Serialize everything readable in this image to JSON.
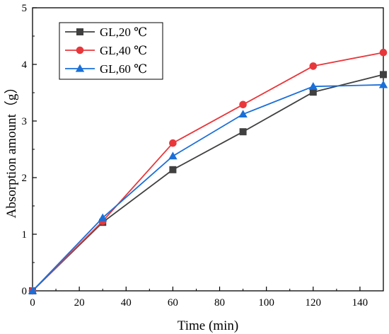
{
  "chart_data": {
    "type": "line",
    "xlabel": "Time (min)",
    "ylabel": "Absorption amount（g）",
    "xlim": [
      0,
      150
    ],
    "ylim": [
      0,
      5
    ],
    "xticks": [
      0,
      20,
      40,
      60,
      80,
      100,
      120,
      140
    ],
    "yticks": [
      0,
      1,
      2,
      3,
      4,
      5
    ],
    "grid": false,
    "legend_position": "top-left",
    "x": [
      0,
      30,
      60,
      90,
      120,
      150
    ],
    "series": [
      {
        "name": "GL,20 ℃",
        "values": [
          0,
          1.21,
          2.14,
          2.81,
          3.51,
          3.82
        ],
        "color": "#404040",
        "marker": "square"
      },
      {
        "name": "GL,40 ℃",
        "values": [
          0,
          1.23,
          2.61,
          3.29,
          3.97,
          4.21
        ],
        "color": "#e8373b",
        "marker": "circle"
      },
      {
        "name": "GL,60 ℃",
        "values": [
          0,
          1.29,
          2.38,
          3.12,
          3.61,
          3.64
        ],
        "color": "#1a6fd8",
        "marker": "triangle"
      }
    ]
  }
}
